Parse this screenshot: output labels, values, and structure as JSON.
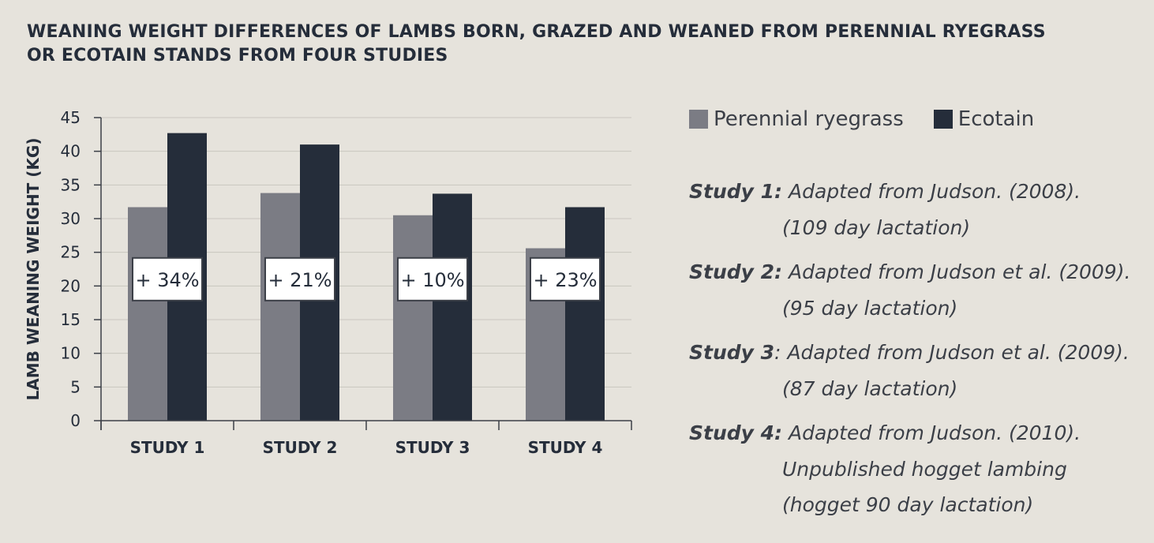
{
  "title_lines": [
    "WEANING WEIGHT DIFFERENCES OF LAMBS BORN, GRAZED AND WEANED FROM PERENNIAL RYEGRASS",
    "OR ECOTAIN STANDS FROM FOUR STUDIES"
  ],
  "legend": [
    {
      "label": "Perennial ryegrass",
      "color": "#7b7c84"
    },
    {
      "label": "Ecotain",
      "color": "#252d3a"
    }
  ],
  "notes": [
    {
      "label": "Study 1",
      "colon": ":",
      "colon_bold": true,
      "lines": [
        "Adapted from Judson. (2008).",
        "(109 day lactation)"
      ]
    },
    {
      "label": "Study 2",
      "colon": ":",
      "colon_bold": true,
      "lines": [
        "Adapted from Judson et al. (2009).",
        "(95 day lactation)"
      ]
    },
    {
      "label": "Study 3",
      "colon": ":",
      "colon_bold": false,
      "lines": [
        "Adapted from Judson et al. (2009).",
        "(87 day lactation)"
      ]
    },
    {
      "label": "Study 4",
      "colon": ":",
      "colon_bold": true,
      "lines": [
        "Adapted from Judson. (2010).",
        "Unpublished hogget lambing",
        "(hogget 90 day lactation)"
      ]
    }
  ],
  "chart_data": {
    "type": "bar",
    "title": "WEANING WEIGHT DIFFERENCES OF LAMBS BORN, GRAZED AND WEANED FROM PERENNIAL RYEGRASS OR ECOTAIN STANDS FROM FOUR STUDIES",
    "xlabel": "",
    "ylabel": "LAMB WEANING WEIGHT (KG)",
    "categories": [
      "STUDY 1",
      "STUDY 2",
      "STUDY 3",
      "STUDY 4"
    ],
    "ylim": [
      0,
      45
    ],
    "yticks": [
      0,
      5,
      10,
      15,
      20,
      25,
      30,
      35,
      40,
      45
    ],
    "grid": true,
    "legend_position": "top-right, outside plot",
    "series": [
      {
        "name": "Perennial ryegrass",
        "color": "#7b7c84",
        "values": [
          31.7,
          33.8,
          30.5,
          25.6
        ]
      },
      {
        "name": "Ecotain",
        "color": "#252d3a",
        "values": [
          42.7,
          41.0,
          33.7,
          31.7
        ]
      }
    ],
    "annotations": [
      "+ 34%",
      "+ 21%",
      "+ 10%",
      "+ 23%"
    ],
    "annotation_y": 21
  }
}
